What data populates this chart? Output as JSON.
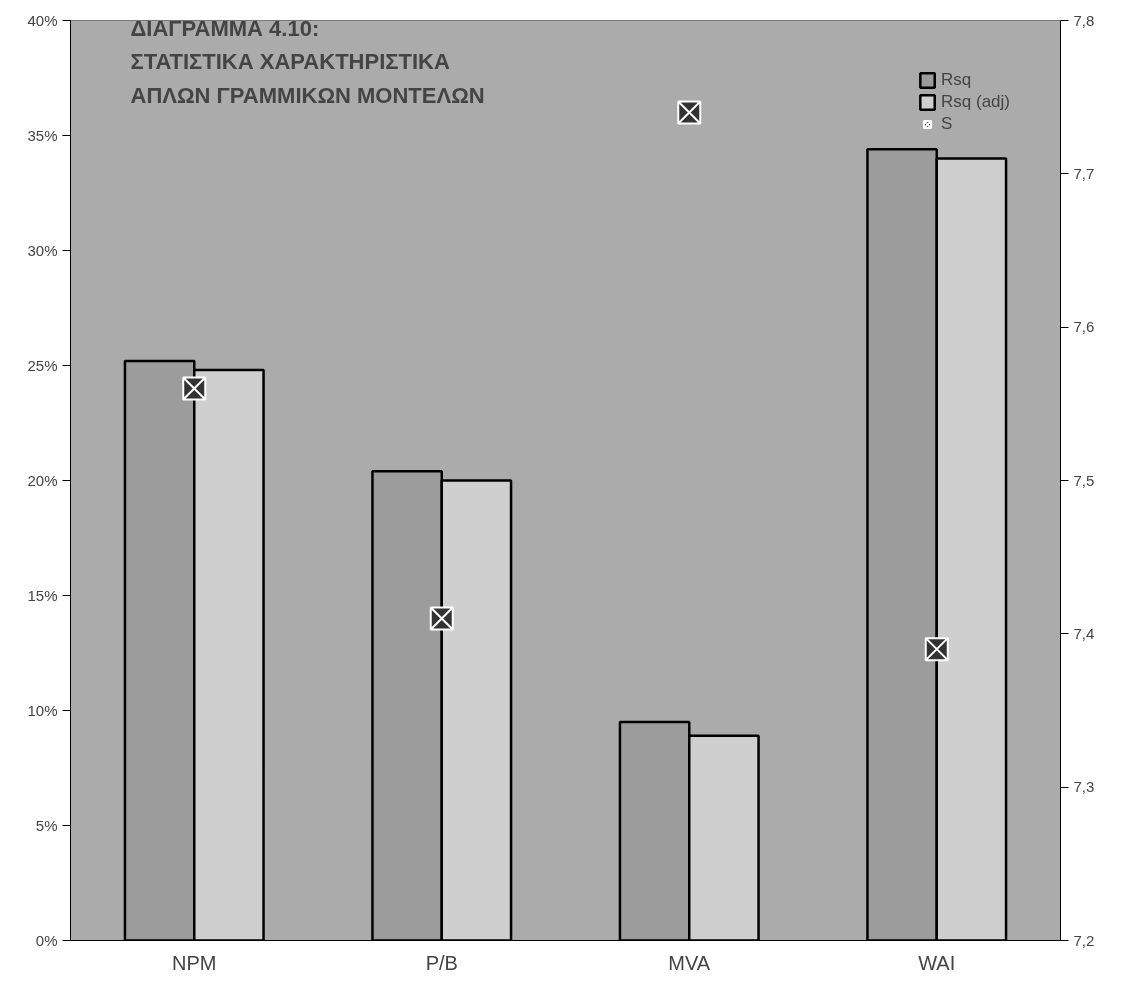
{
  "chart_data": {
    "type": "bar",
    "title": "ΔΙΑΓΡΑΜΜΑ 4.10:\nΣΤΑΤΙΣΤΙΚΑ ΧΑΡΑΚΤΗΡΙΣΤΙΚΑ\nΑΠΛΩΝ ΓΡΑΜΜΙΚΩΝ ΜΟΝΤΕΛΩΝ",
    "categories": [
      "NPM",
      "P/B",
      "MVA",
      "WAI"
    ],
    "series": [
      {
        "name": "Rsq",
        "color": "#9c9c9c",
        "values": [
          25.2,
          20.4,
          9.5,
          34.4
        ]
      },
      {
        "name": "Rsq (adj)",
        "color": "#cfcfcf",
        "values": [
          24.8,
          20.0,
          8.9,
          34.0
        ]
      },
      {
        "name": "S",
        "type": "scatter",
        "axis": "y2",
        "color": "#333333",
        "values": [
          7.56,
          7.41,
          7.74,
          7.39
        ]
      }
    ],
    "ylim": [
      0,
      40
    ],
    "yticks": [
      {
        "value": 0,
        "label": "0%"
      },
      {
        "value": 5,
        "label": "5%"
      },
      {
        "value": 10,
        "label": "10%"
      },
      {
        "value": 15,
        "label": "15%"
      },
      {
        "value": 20,
        "label": "20%"
      },
      {
        "value": 25,
        "label": "25%"
      },
      {
        "value": 30,
        "label": "30%"
      },
      {
        "value": 35,
        "label": "35%"
      },
      {
        "value": 40,
        "label": "40%"
      }
    ],
    "y2lim": [
      7.2,
      7.8
    ],
    "y2ticks": [
      {
        "value": 7.2,
        "label": "7,2"
      },
      {
        "value": 7.3,
        "label": "7,3"
      },
      {
        "value": 7.4,
        "label": "7,4"
      },
      {
        "value": 7.5,
        "label": "7,5"
      },
      {
        "value": 7.6,
        "label": "7,6"
      },
      {
        "value": 7.7,
        "label": "7,7"
      },
      {
        "value": 7.8,
        "label": "7,8"
      }
    ],
    "grid": false,
    "legend": "top right",
    "marker": "square"
  }
}
